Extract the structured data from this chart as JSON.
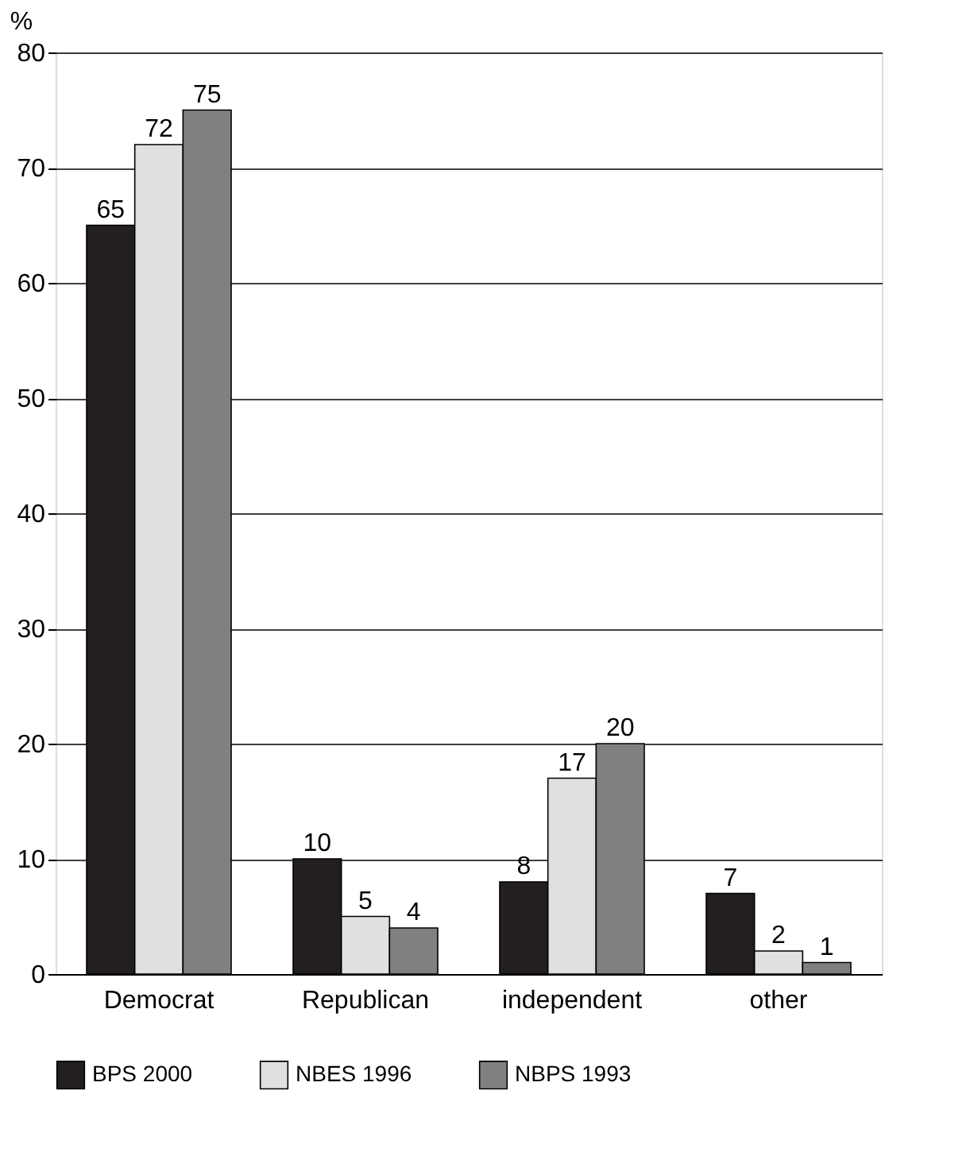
{
  "chart_data": {
    "type": "bar",
    "ylabel": "%",
    "categories": [
      "Democrat",
      "Republican",
      "independent",
      "other"
    ],
    "series": [
      {
        "name": "BPS 2000",
        "color": "#231f20",
        "values": [
          65,
          10,
          8,
          7
        ]
      },
      {
        "name": "NBES 1996",
        "color": "#e0e0e0",
        "values": [
          72,
          5,
          17,
          2
        ]
      },
      {
        "name": "NBPS 1993",
        "color": "#808080",
        "values": [
          75,
          4,
          20,
          1
        ]
      }
    ],
    "ylim": [
      0,
      80
    ],
    "yticks": [
      0,
      10,
      20,
      30,
      40,
      50,
      60,
      70,
      80
    ],
    "grid": "y",
    "legend": "bottom",
    "data_labels": true
  }
}
